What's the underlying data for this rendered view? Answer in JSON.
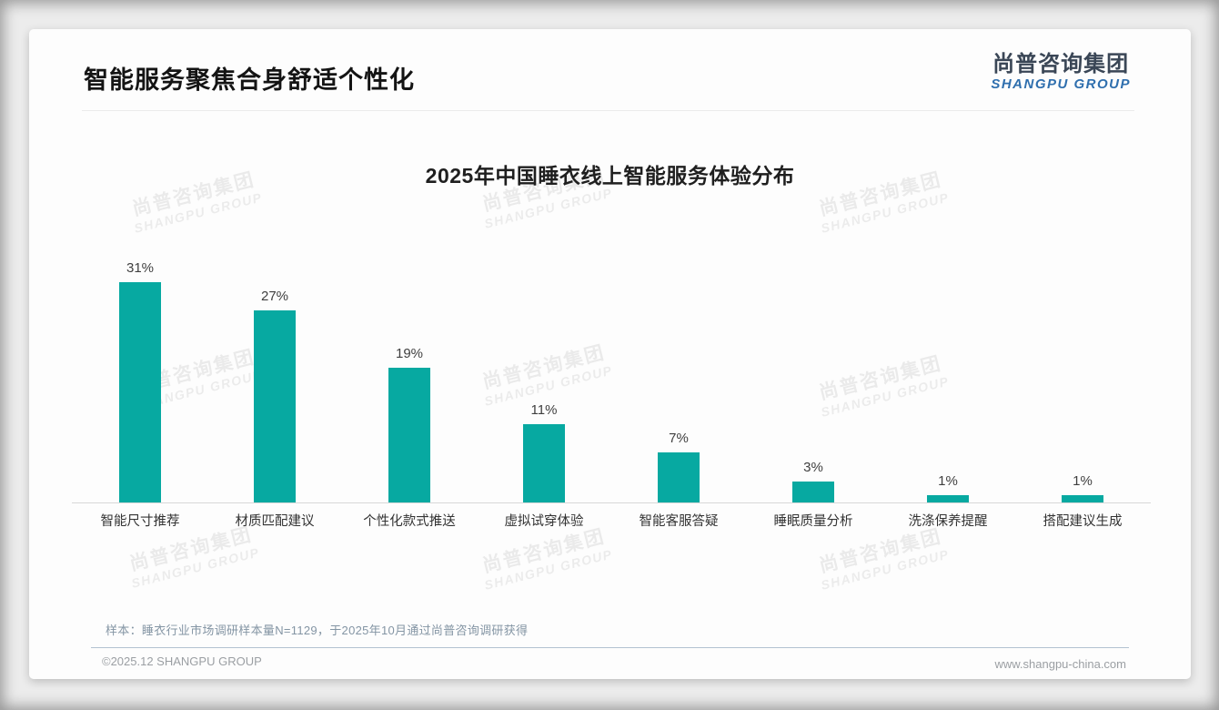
{
  "header": {
    "title": "智能服务聚焦合身舒适个性化"
  },
  "logo": {
    "cn": "尚普咨询集团",
    "en": "SHANGPU GROUP"
  },
  "watermark": {
    "line1": "尚普咨询集团",
    "line2": "SHANGPU GROUP"
  },
  "chart_data": {
    "type": "bar",
    "title": "2025年中国睡衣线上智能服务体验分布",
    "categories": [
      "智能尺寸推荐",
      "材质匹配建议",
      "个性化款式推送",
      "虚拟试穿体验",
      "智能客服答疑",
      "睡眠质量分析",
      "洗涤保养提醒",
      "搭配建议生成"
    ],
    "values": [
      31,
      27,
      19,
      11,
      7,
      3,
      1,
      1
    ],
    "value_labels": [
      "31%",
      "27%",
      "19%",
      "11%",
      "7%",
      "3%",
      "1%",
      "1%"
    ],
    "bar_color": "#07a9a1",
    "xlabel": "",
    "ylabel": "",
    "ylim": [
      0,
      35
    ],
    "grid": false,
    "legend": false,
    "data_labels": true,
    "axis_line_color": "#d8d8d8"
  },
  "note": {
    "text": "样本：睡衣行业市场调研样本量N=1129，于2025年10月通过尚普咨询调研获得"
  },
  "footer": {
    "left": "©2025.12 SHANGPU GROUP",
    "right": "www.shangpu-china.com"
  }
}
